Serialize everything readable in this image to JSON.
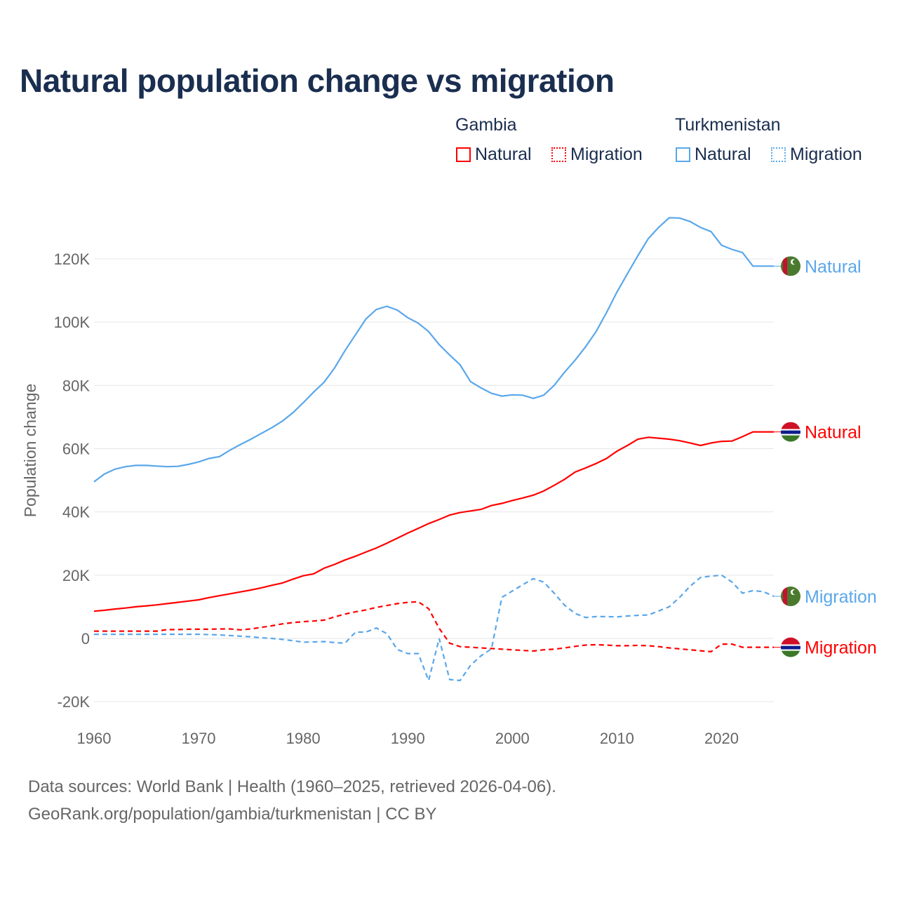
{
  "title": "Natural population change vs migration",
  "legend": {
    "groups": [
      {
        "name": "Gambia",
        "color": "#ff0000",
        "items": [
          "Natural",
          "Migration"
        ]
      },
      {
        "name": "Turkmenistan",
        "color": "#5aa7ea",
        "items": [
          "Natural",
          "Migration"
        ]
      }
    ]
  },
  "footer": {
    "line1": "Data sources: World Bank | Health (1960–2025, retrieved 2026-04-06).",
    "line2": "GeoRank.org/population/gambia/turkmenistan | CC BY"
  },
  "chart_data": {
    "type": "line",
    "title": "Natural population change vs migration",
    "xlabel": "",
    "ylabel": "Population change",
    "xlim": [
      1960,
      2025
    ],
    "ylim": [
      -20000,
      135000
    ],
    "x_ticks": [
      "1960",
      "1970",
      "1980",
      "1990",
      "2000",
      "2010",
      "2020"
    ],
    "y_ticks": [
      {
        "value": -20000,
        "label": "-20K"
      },
      {
        "value": 0,
        "label": "0"
      },
      {
        "value": 20000,
        "label": "20K"
      },
      {
        "value": 40000,
        "label": "40K"
      },
      {
        "value": 60000,
        "label": "60K"
      },
      {
        "value": 80000,
        "label": "80K"
      },
      {
        "value": 100000,
        "label": "100K"
      },
      {
        "value": 120000,
        "label": "120K"
      }
    ],
    "grid": true,
    "x_start": 1960,
    "unit_multiplier": 1000,
    "series": [
      {
        "name": "Turkmenistan Natural",
        "end_label": "Natural",
        "country": "turkmenistan",
        "color": "#5aa7ea",
        "dash": "solid",
        "values": [
          49.5,
          52,
          53.5,
          54.3,
          54.7,
          54.7,
          54.5,
          54.3,
          54.4,
          55,
          55.8,
          56.9,
          57.5,
          59.5,
          61.3,
          63,
          64.8,
          66.6,
          68.7,
          71.3,
          74.5,
          77.9,
          81,
          85.5,
          91,
          96,
          101,
          104,
          105,
          103.8,
          101.4,
          99.7,
          97,
          92.9,
          89.6,
          86.5,
          81.2,
          79.2,
          77.5,
          76.6,
          77,
          76.9,
          75.9,
          76.9,
          80,
          84.2,
          88,
          92.2,
          97,
          103,
          109.5,
          115.3,
          121,
          126.4,
          130,
          133,
          132.9,
          131.8,
          129.9,
          128.6,
          124.3,
          123,
          122,
          117.7,
          117.7,
          117.7
        ]
      },
      {
        "name": "Gambia Natural",
        "end_label": "Natural",
        "country": "gambia",
        "color": "#ff0000",
        "dash": "solid",
        "values": [
          8.6,
          8.9,
          9.3,
          9.6,
          10,
          10.3,
          10.6,
          11,
          11.4,
          11.8,
          12.2,
          12.9,
          13.5,
          14.1,
          14.7,
          15.3,
          16,
          16.8,
          17.5,
          18.7,
          19.8,
          20.4,
          22.2,
          23.4,
          24.8,
          26,
          27.3,
          28.6,
          30.1,
          31.7,
          33.3,
          34.8,
          36.3,
          37.6,
          39,
          39.8,
          40.3,
          40.8,
          42,
          42.7,
          43.6,
          44.4,
          45.3,
          46.6,
          48.4,
          50.3,
          52.6,
          53.9,
          55.3,
          56.9,
          59.2,
          61,
          63,
          63.6,
          63.3,
          63,
          62.5,
          61.8,
          61,
          61.8,
          62.3,
          62.4,
          63.8,
          65.3,
          65.3,
          65.3
        ]
      },
      {
        "name": "Turkmenistan Migration",
        "end_label": "Migration",
        "country": "turkmenistan",
        "color": "#5aa7ea",
        "dash": "dashed",
        "values": [
          1.3,
          1.3,
          1.3,
          1.3,
          1.3,
          1.3,
          1.3,
          1.3,
          1.3,
          1.3,
          1.3,
          1.2,
          1.1,
          0.9,
          0.7,
          0.5,
          0.2,
          0,
          -0.3,
          -0.7,
          -1.2,
          -1.1,
          -1,
          -1.3,
          -1.5,
          2,
          2,
          3.3,
          1.5,
          -3.5,
          -4.8,
          -4.8,
          -13.3,
          0,
          -13,
          -13.3,
          -8.5,
          -5.5,
          -3.3,
          13,
          15,
          17,
          18.9,
          17.8,
          14.3,
          10.5,
          7.9,
          6.6,
          6.9,
          6.9,
          6.8,
          7.1,
          7.3,
          7.4,
          8.7,
          10,
          13,
          16.5,
          19.3,
          19.7,
          20,
          17.8,
          14.3,
          15.1,
          14.8,
          13.3
        ]
      },
      {
        "name": "Gambia Migration",
        "end_label": "Migration",
        "country": "gambia",
        "color": "#ff0000",
        "dash": "dashed",
        "values": [
          2.3,
          2.3,
          2.3,
          2.3,
          2.3,
          2.3,
          2.3,
          2.8,
          2.8,
          2.9,
          2.9,
          2.9,
          3,
          3,
          2.7,
          3,
          3.5,
          4,
          4.6,
          5,
          5.3,
          5.5,
          5.8,
          6.8,
          7.7,
          8.4,
          9,
          9.8,
          10.4,
          11,
          11.4,
          11.6,
          9.4,
          3.2,
          -1.5,
          -2.6,
          -2.8,
          -3,
          -3.2,
          -3.4,
          -3.6,
          -3.8,
          -4,
          -3.6,
          -3.4,
          -3,
          -2.5,
          -2.1,
          -2,
          -2.1,
          -2.3,
          -2.3,
          -2.2,
          -2.3,
          -2.6,
          -3,
          -3.3,
          -3.6,
          -3.9,
          -4.2,
          -1.8,
          -1.8,
          -2.8,
          -2.8,
          -2.8,
          -2.8
        ]
      }
    ]
  }
}
